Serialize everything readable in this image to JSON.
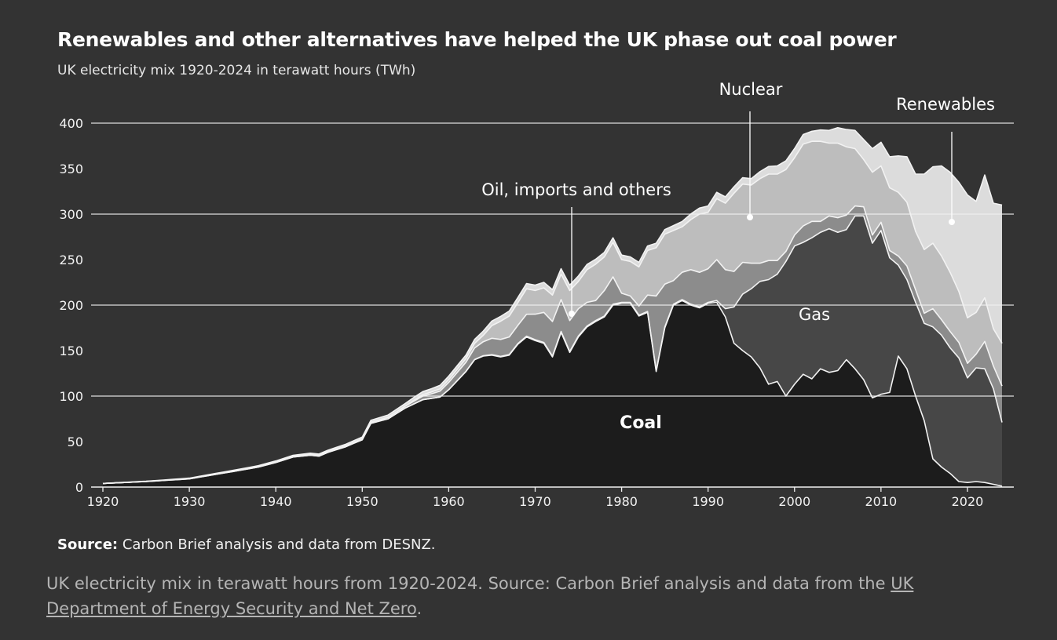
{
  "colors": {
    "background": "#333333",
    "coal": "#1c1c1c",
    "gas": "#474747",
    "oil_imports_others": "#8c8c8c",
    "nuclear": "#bdbdbd",
    "renewables": "#dcdcdc",
    "outline": "#f2f2f2",
    "grid": "#f0f0f0"
  },
  "chart_data": {
    "type": "area",
    "stacked": true,
    "title": "Renewables and other alternatives have helped the UK phase out coal power",
    "subtitle": "UK electricity mix 1920-2024 in terawatt hours (TWh)",
    "xlabel": "",
    "ylabel": "",
    "xlim": [
      1920,
      2024
    ],
    "ylim": [
      0,
      400
    ],
    "xticks": [
      1920,
      1930,
      1940,
      1950,
      1960,
      1970,
      1980,
      1990,
      2000,
      2010,
      2020
    ],
    "yticks": [
      0,
      50,
      100,
      150,
      200,
      250,
      300,
      350,
      400
    ],
    "grid": true,
    "annotations": {
      "coal": "Coal",
      "gas": "Gas",
      "oil": "Oil, imports and others",
      "nuclear": "Nuclear",
      "renewables": "Renewables"
    },
    "series": [
      {
        "name": "Coal",
        "points": [
          [
            1920,
            4
          ],
          [
            1925,
            6
          ],
          [
            1930,
            9
          ],
          [
            1935,
            17
          ],
          [
            1938,
            22
          ],
          [
            1940,
            27
          ],
          [
            1942,
            33
          ],
          [
            1944,
            35
          ],
          [
            1945,
            34
          ],
          [
            1946,
            38
          ],
          [
            1948,
            44
          ],
          [
            1950,
            52
          ],
          [
            1951,
            70
          ],
          [
            1953,
            75
          ],
          [
            1955,
            87
          ],
          [
            1957,
            96
          ],
          [
            1959,
            99
          ],
          [
            1960,
            107
          ],
          [
            1961,
            117
          ],
          [
            1962,
            127
          ],
          [
            1963,
            140
          ],
          [
            1964,
            144
          ],
          [
            1965,
            145
          ],
          [
            1966,
            143
          ],
          [
            1967,
            145
          ],
          [
            1968,
            157
          ],
          [
            1969,
            165
          ],
          [
            1970,
            161
          ],
          [
            1971,
            158
          ],
          [
            1972,
            143
          ],
          [
            1973,
            170
          ],
          [
            1974,
            148
          ],
          [
            1975,
            165
          ],
          [
            1976,
            176
          ],
          [
            1977,
            182
          ],
          [
            1978,
            187
          ],
          [
            1979,
            200
          ],
          [
            1980,
            202
          ],
          [
            1981,
            202
          ],
          [
            1982,
            188
          ],
          [
            1983,
            192
          ],
          [
            1984,
            127
          ],
          [
            1985,
            175
          ],
          [
            1986,
            200
          ],
          [
            1987,
            205
          ],
          [
            1988,
            200
          ],
          [
            1989,
            197
          ],
          [
            1990,
            202
          ],
          [
            1991,
            203
          ],
          [
            1992,
            187
          ],
          [
            1993,
            158
          ],
          [
            1994,
            150
          ],
          [
            1995,
            143
          ],
          [
            1996,
            131
          ],
          [
            1997,
            113
          ],
          [
            1998,
            116
          ],
          [
            1999,
            100
          ],
          [
            2000,
            113
          ],
          [
            2001,
            124
          ],
          [
            2002,
            119
          ],
          [
            2003,
            130
          ],
          [
            2004,
            126
          ],
          [
            2005,
            128
          ],
          [
            2006,
            140
          ],
          [
            2007,
            130
          ],
          [
            2008,
            118
          ],
          [
            2009,
            98
          ],
          [
            2010,
            102
          ],
          [
            2011,
            104
          ],
          [
            2012,
            144
          ],
          [
            2013,
            130
          ],
          [
            2014,
            100
          ],
          [
            2015,
            73
          ],
          [
            2016,
            31
          ],
          [
            2017,
            22
          ],
          [
            2018,
            15
          ],
          [
            2019,
            6
          ],
          [
            2020,
            5
          ],
          [
            2021,
            6
          ],
          [
            2022,
            5
          ],
          [
            2023,
            3
          ],
          [
            2024,
            1
          ]
        ]
      },
      {
        "name": "Gas",
        "points": [
          [
            1920,
            0
          ],
          [
            1960,
            0
          ],
          [
            1970,
            1
          ],
          [
            1980,
            1
          ],
          [
            1990,
            1
          ],
          [
            1991,
            2
          ],
          [
            1992,
            9
          ],
          [
            1993,
            40
          ],
          [
            1994,
            62
          ],
          [
            1995,
            75
          ],
          [
            1996,
            95
          ],
          [
            1997,
            115
          ],
          [
            1998,
            118
          ],
          [
            1999,
            148
          ],
          [
            2000,
            152
          ],
          [
            2001,
            145
          ],
          [
            2002,
            155
          ],
          [
            2003,
            150
          ],
          [
            2004,
            158
          ],
          [
            2005,
            152
          ],
          [
            2006,
            143
          ],
          [
            2007,
            168
          ],
          [
            2008,
            180
          ],
          [
            2009,
            170
          ],
          [
            2010,
            180
          ],
          [
            2011,
            148
          ],
          [
            2012,
            100
          ],
          [
            2013,
            98
          ],
          [
            2014,
            103
          ],
          [
            2015,
            107
          ],
          [
            2016,
            145
          ],
          [
            2017,
            145
          ],
          [
            2018,
            138
          ],
          [
            2019,
            136
          ],
          [
            2020,
            115
          ],
          [
            2021,
            125
          ],
          [
            2022,
            125
          ],
          [
            2023,
            105
          ],
          [
            2024,
            70
          ]
        ]
      },
      {
        "name": "Oil, imports and others",
        "points": [
          [
            1920,
            0
          ],
          [
            1950,
            1
          ],
          [
            1955,
            2
          ],
          [
            1958,
            5
          ],
          [
            1960,
            8
          ],
          [
            1962,
            10
          ],
          [
            1965,
            18
          ],
          [
            1968,
            20
          ],
          [
            1970,
            28
          ],
          [
            1971,
            33
          ],
          [
            1972,
            38
          ],
          [
            1973,
            35
          ],
          [
            1974,
            34
          ],
          [
            1975,
            30
          ],
          [
            1976,
            26
          ],
          [
            1977,
            22
          ],
          [
            1978,
            28
          ],
          [
            1979,
            30
          ],
          [
            1980,
            10
          ],
          [
            1981,
            7
          ],
          [
            1982,
            10
          ],
          [
            1983,
            18
          ],
          [
            1984,
            82
          ],
          [
            1985,
            47
          ],
          [
            1986,
            26
          ],
          [
            1987,
            30
          ],
          [
            1988,
            38
          ],
          [
            1989,
            38
          ],
          [
            1990,
            37
          ],
          [
            1991,
            45
          ],
          [
            1992,
            43
          ],
          [
            1993,
            39
          ],
          [
            1994,
            35
          ],
          [
            1995,
            28
          ],
          [
            1996,
            20
          ],
          [
            1997,
            21
          ],
          [
            1998,
            15
          ],
          [
            1999,
            11
          ],
          [
            2000,
            12
          ],
          [
            2001,
            18
          ],
          [
            2002,
            18
          ],
          [
            2003,
            12
          ],
          [
            2004,
            14
          ],
          [
            2005,
            16
          ],
          [
            2006,
            16
          ],
          [
            2007,
            11
          ],
          [
            2008,
            10
          ],
          [
            2009,
            9
          ],
          [
            2010,
            9
          ],
          [
            2011,
            8
          ],
          [
            2012,
            10
          ],
          [
            2013,
            15
          ],
          [
            2014,
            14
          ],
          [
            2015,
            11
          ],
          [
            2016,
            20
          ],
          [
            2017,
            17
          ],
          [
            2018,
            18
          ],
          [
            2019,
            17
          ],
          [
            2020,
            16
          ],
          [
            2021,
            15
          ],
          [
            2022,
            30
          ],
          [
            2023,
            25
          ],
          [
            2024,
            40
          ]
        ]
      },
      {
        "name": "Nuclear",
        "points": [
          [
            1920,
            0
          ],
          [
            1955,
            0
          ],
          [
            1956,
            1
          ],
          [
            1958,
            2
          ],
          [
            1960,
            3
          ],
          [
            1962,
            4
          ],
          [
            1963,
            5
          ],
          [
            1964,
            7
          ],
          [
            1965,
            14
          ],
          [
            1966,
            20
          ],
          [
            1967,
            23
          ],
          [
            1968,
            25
          ],
          [
            1969,
            28
          ],
          [
            1970,
            26
          ],
          [
            1971,
            27
          ],
          [
            1972,
            29
          ],
          [
            1973,
            28
          ],
          [
            1974,
            33
          ],
          [
            1975,
            30
          ],
          [
            1976,
            36
          ],
          [
            1977,
            40
          ],
          [
            1978,
            37
          ],
          [
            1979,
            38
          ],
          [
            1980,
            37
          ],
          [
            1981,
            38
          ],
          [
            1982,
            43
          ],
          [
            1983,
            49
          ],
          [
            1984,
            53
          ],
          [
            1985,
            55
          ],
          [
            1986,
            55
          ],
          [
            1987,
            50
          ],
          [
            1988,
            55
          ],
          [
            1989,
            64
          ],
          [
            1990,
            62
          ],
          [
            1991,
            67
          ],
          [
            1992,
            73
          ],
          [
            1993,
            86
          ],
          [
            1994,
            86
          ],
          [
            1995,
            86
          ],
          [
            1996,
            93
          ],
          [
            1997,
            95
          ],
          [
            1998,
            95
          ],
          [
            1999,
            90
          ],
          [
            2000,
            85
          ],
          [
            2001,
            90
          ],
          [
            2002,
            88
          ],
          [
            2003,
            88
          ],
          [
            2004,
            80
          ],
          [
            2005,
            82
          ],
          [
            2006,
            75
          ],
          [
            2007,
            63
          ],
          [
            2008,
            52
          ],
          [
            2009,
            69
          ],
          [
            2010,
            62
          ],
          [
            2011,
            69
          ],
          [
            2012,
            70
          ],
          [
            2013,
            70
          ],
          [
            2014,
            64
          ],
          [
            2015,
            70
          ],
          [
            2016,
            72
          ],
          [
            2017,
            70
          ],
          [
            2018,
            65
          ],
          [
            2019,
            56
          ],
          [
            2020,
            50
          ],
          [
            2021,
            46
          ],
          [
            2022,
            48
          ],
          [
            2023,
            41
          ],
          [
            2024,
            47
          ]
        ]
      },
      {
        "name": "Renewables",
        "points": [
          [
            1920,
            0
          ],
          [
            1940,
            1
          ],
          [
            1950,
            2
          ],
          [
            1960,
            4
          ],
          [
            1962,
            4
          ],
          [
            1965,
            5
          ],
          [
            1970,
            6
          ],
          [
            1972,
            6
          ],
          [
            1975,
            6
          ],
          [
            1978,
            5
          ],
          [
            1980,
            5
          ],
          [
            1982,
            5
          ],
          [
            1985,
            5
          ],
          [
            1990,
            7
          ],
          [
            1995,
            7
          ],
          [
            1998,
            9
          ],
          [
            2000,
            10
          ],
          [
            2002,
            11
          ],
          [
            2004,
            14
          ],
          [
            2005,
            17
          ],
          [
            2006,
            19
          ],
          [
            2007,
            20
          ],
          [
            2008,
            22
          ],
          [
            2009,
            26
          ],
          [
            2010,
            26
          ],
          [
            2011,
            34
          ],
          [
            2012,
            40
          ],
          [
            2013,
            50
          ],
          [
            2014,
            63
          ],
          [
            2015,
            83
          ],
          [
            2016,
            84
          ],
          [
            2017,
            99
          ],
          [
            2018,
            110
          ],
          [
            2019,
            120
          ],
          [
            2020,
            135
          ],
          [
            2021,
            122
          ],
          [
            2022,
            135
          ],
          [
            2023,
            138
          ],
          [
            2024,
            152
          ]
        ]
      }
    ]
  },
  "footer": {
    "source_label": "Source:",
    "source_text": "Carbon Brief analysis and data from DESNZ.",
    "caption_text": "UK electricity mix in terawatt hours from 1920-2024. Source: Carbon Brief analysis and data from the ",
    "caption_link": "UK Department of Energy Security and Net Zero",
    "caption_end": "."
  }
}
